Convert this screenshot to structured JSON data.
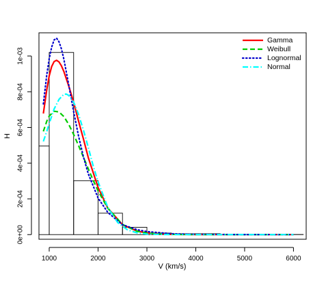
{
  "chart_data": {
    "type": "histogram",
    "xlabel": "V (km/s)",
    "ylabel": "H",
    "xlim": [
      790,
      6260
    ],
    "ylim": [
      -2.6e-05,
      0.00113
    ],
    "x_ticks": [
      1000,
      2000,
      3000,
      4000,
      5000,
      6000
    ],
    "x_tick_labels": [
      "1000",
      "2000",
      "3000",
      "4000",
      "5000",
      "6000"
    ],
    "y_ticks": [
      0,
      0.0002,
      0.0004,
      0.0006,
      0.0008,
      0.001
    ],
    "y_tick_labels": [
      "0e+00",
      "2e-04",
      "4e-04",
      "6e-04",
      "8e-04",
      "1e-03"
    ],
    "grid": false,
    "legend_position": "top-right",
    "histogram": {
      "bin_edges": [
        500,
        1000,
        1500,
        2000,
        2500,
        3000,
        3500,
        4500,
        6200
      ],
      "densities": [
        0.000496,
        0.00102,
        0.000302,
        0.00012,
        4.1e-05,
        8.7e-06,
        5e-06,
        7e-07
      ]
    },
    "series": [
      {
        "name": "Gamma",
        "color": "#ff0000",
        "dash": "solid",
        "x": [
          880,
          950,
          1000,
          1050,
          1100,
          1150,
          1200,
          1250,
          1300,
          1400,
          1500,
          1600,
          1700,
          1800,
          2000,
          2200,
          2500,
          2800,
          3000,
          3500,
          4000,
          5000,
          6000
        ],
        "y": [
          0.000678,
          0.000812,
          0.000889,
          0.000941,
          0.000969,
          0.000976,
          0.000967,
          0.000945,
          0.000913,
          0.000832,
          0.000741,
          0.000636,
          0.000536,
          0.000431,
          0.000264,
          0.000148,
          5.55e-05,
          1.95e-05,
          9e-06,
          1.5e-06,
          3e-07,
          0,
          0
        ]
      },
      {
        "name": "Weibull",
        "color": "#00cc00",
        "dash": "dashed",
        "x": [
          880,
          950,
          1000,
          1100,
          1200,
          1300,
          1400,
          1500,
          1600,
          1700,
          1800,
          1900,
          2000,
          2200,
          2500,
          2800,
          3000,
          3500,
          4000,
          5000,
          6000
        ],
        "y": [
          0.000578,
          0.000635,
          0.000664,
          0.000691,
          0.000687,
          0.000661,
          0.000617,
          0.000561,
          0.000499,
          0.000434,
          0.000368,
          0.000304,
          0.000245,
          0.000147,
          5.7e-05,
          1.85e-05,
          8.7e-06,
          1.2e-06,
          2e-07,
          0,
          0
        ]
      },
      {
        "name": "Lognormal",
        "color": "#0000cc",
        "dash": "dotted",
        "x": [
          880,
          950,
          1000,
          1050,
          1100,
          1150,
          1200,
          1250,
          1300,
          1400,
          1500,
          1600,
          1700,
          1800,
          2000,
          2200,
          2500,
          2800,
          3000,
          3500,
          4000,
          5000,
          6000
        ],
        "y": [
          0.000732,
          0.000895,
          0.000985,
          0.00105,
          0.00109,
          0.0011,
          0.00108,
          0.00104,
          0.000982,
          0.000838,
          0.000688,
          0.000552,
          0.000436,
          0.00034,
          0.000205,
          0.000124,
          5.55e-05,
          2.75e-05,
          1.7e-05,
          5e-06,
          1.5e-06,
          2e-07,
          0
        ]
      },
      {
        "name": "Normal",
        "color": "#00ffff",
        "dash": "dotdash",
        "x": [
          880,
          950,
          1000,
          1100,
          1200,
          1300,
          1350,
          1400,
          1500,
          1600,
          1700,
          1800,
          1900,
          2000,
          2200,
          2400,
          2600,
          2800,
          3000,
          3500,
          4000,
          5000,
          6000
        ],
        "y": [
          0.000522,
          0.000578,
          0.000622,
          0.000703,
          0.000757,
          0.000786,
          0.000787,
          0.000779,
          0.000742,
          0.000673,
          0.000586,
          0.000488,
          0.000385,
          0.000296,
          0.000152,
          6.8e-05,
          2.7e-05,
          9.5e-06,
          3e-06,
          0,
          0,
          0,
          0
        ]
      }
    ]
  }
}
